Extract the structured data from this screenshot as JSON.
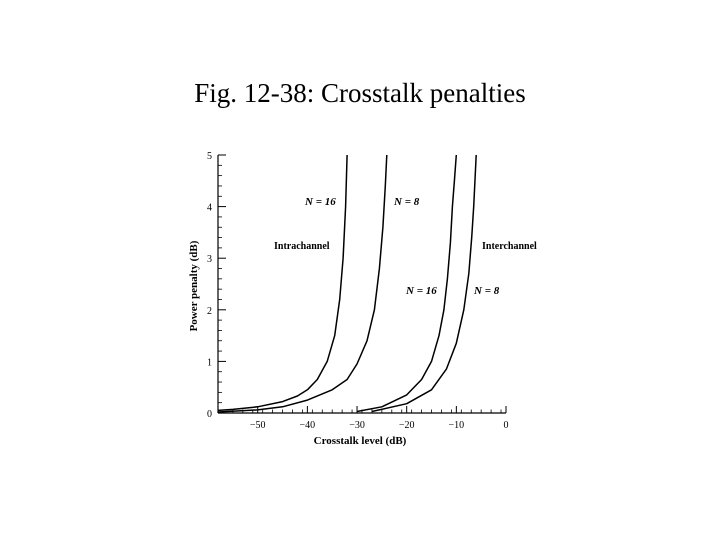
{
  "slide": {
    "title": "Fig. 12-38: Crosstalk penalties"
  },
  "chart_data": {
    "type": "line",
    "xlabel": "Crosstalk level (dB)",
    "ylabel": "Power penalty (dB)",
    "xlim": [
      -58,
      0
    ],
    "ylim": [
      0,
      5
    ],
    "xticks": [
      -50,
      -40,
      -30,
      -20,
      -10,
      0
    ],
    "xtick_labels": [
      "−50",
      "−40",
      "−30",
      "−20",
      "−10",
      "0"
    ],
    "yticks": [
      0,
      1,
      2,
      3,
      4,
      5
    ],
    "ytick_labels": [
      "0",
      "1",
      "2",
      "3",
      "4",
      "5"
    ],
    "grid": false,
    "series": [
      {
        "name": "N = 16",
        "group": "Intrachannel",
        "x": [
          -58,
          -55,
          -50,
          -45,
          -42,
          -40,
          -38,
          -36,
          -34.5,
          -33.5,
          -32.8,
          -32.3,
          -32.0
        ],
        "y": [
          0.05,
          0.07,
          0.12,
          0.22,
          0.33,
          0.45,
          0.65,
          1.0,
          1.5,
          2.2,
          3.0,
          4.0,
          5.0
        ]
      },
      {
        "name": "N = 8",
        "group": "Intrachannel",
        "x": [
          -58,
          -50,
          -45,
          -40,
          -35,
          -32,
          -30,
          -28,
          -26.5,
          -25.5,
          -24.8,
          -24.3,
          -24.0
        ],
        "y": [
          0.02,
          0.06,
          0.12,
          0.25,
          0.45,
          0.65,
          0.95,
          1.4,
          2.0,
          2.8,
          3.6,
          4.4,
          5.0
        ]
      },
      {
        "name": "N = 16",
        "group": "Interchannel",
        "x": [
          -30,
          -25,
          -20,
          -17,
          -15,
          -13.5,
          -12.5,
          -11.8,
          -11.2,
          -10.8,
          -10.4,
          -10.0
        ],
        "y": [
          0.03,
          0.12,
          0.35,
          0.65,
          1.0,
          1.5,
          2.0,
          2.6,
          3.3,
          4.0,
          4.5,
          5.0
        ]
      },
      {
        "name": "N = 8",
        "group": "Interchannel",
        "x": [
          -27,
          -20,
          -15,
          -12,
          -10,
          -8.5,
          -7.5,
          -6.9,
          -6.5,
          -6.2,
          -6.0
        ],
        "y": [
          0.03,
          0.18,
          0.45,
          0.85,
          1.35,
          2.0,
          2.7,
          3.4,
          4.0,
          4.6,
          5.0
        ]
      }
    ],
    "annotations": [
      "Intrachannel",
      "Interchannel"
    ]
  }
}
